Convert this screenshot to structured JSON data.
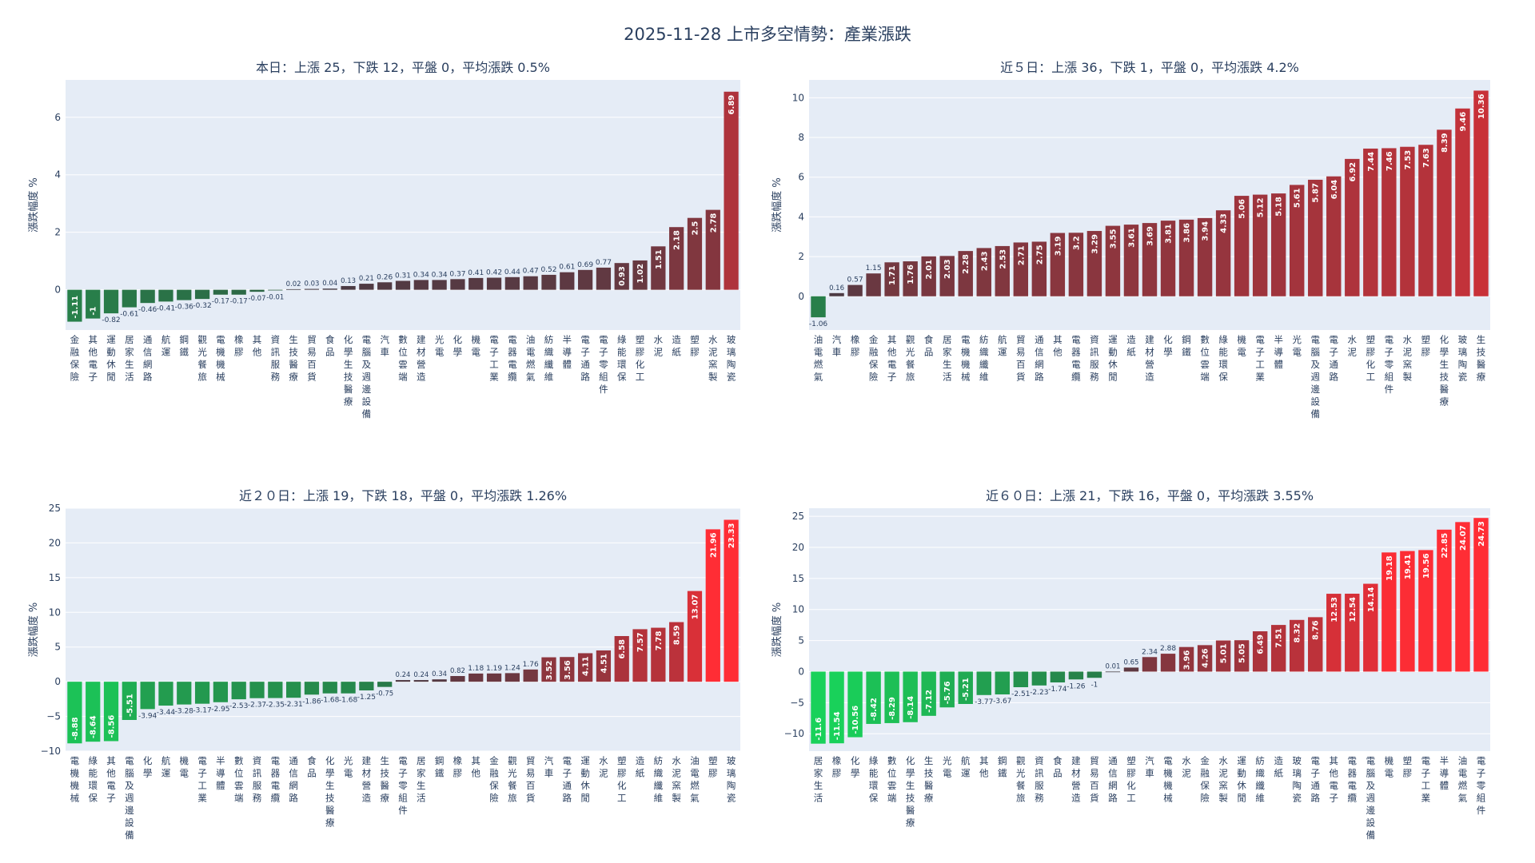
{
  "title": "2025-11-28 上市多空情勢：產業漲跌",
  "colors": {
    "plot_bg": "#e5ecf6",
    "grid": "#ffffff",
    "text": "#2a3f5f",
    "pos_high": "#ff2d35",
    "pos_low": "#3b3c45",
    "neg_low": "#2e5c43",
    "neg_high": "#19d35a"
  },
  "chart_data": [
    {
      "type": "bar",
      "title": "本日：上漲 25，下跌 12，平盤 0，平均漲跌 0.5%",
      "ylabel": "漲跌幅度 %",
      "ylim": [
        -1.4,
        7.3
      ],
      "yticks": [
        0,
        2,
        4,
        6
      ],
      "categories": [
        "金融保險",
        "其他電子",
        "運動休閒",
        "居家生活",
        "通信網路",
        "航運",
        "鋼鐵",
        "觀光餐旅",
        "電機機械",
        "橡膠",
        "其他",
        "資訊服務",
        "生技醫療",
        "貿易百貨",
        "食品",
        "化學生技醫療",
        "電腦及週邊設備",
        "汽車",
        "數位雲端",
        "建材營造",
        "光電",
        "化學",
        "機電",
        "電子工業",
        "電器電纜",
        "油電燃氣",
        "紡織纖維",
        "半導體",
        "電子通路",
        "電子零組件",
        "綠能環保",
        "塑膠化工",
        "水泥",
        "造紙",
        "塑膠",
        "水泥窯製",
        "玻璃陶瓷"
      ],
      "values": [
        -1.11,
        -1,
        -0.82,
        -0.61,
        -0.46,
        -0.41,
        -0.36,
        -0.32,
        -0.17,
        -0.17,
        -0.07,
        -0.01,
        0.02,
        0.03,
        0.04,
        0.13,
        0.21,
        0.26,
        0.31,
        0.34,
        0.34,
        0.37,
        0.41,
        0.42,
        0.44,
        0.47,
        0.52,
        0.61,
        0.69,
        0.77,
        0.93,
        1.02,
        1.51,
        2.18,
        2.5,
        2.78,
        6.89
      ]
    },
    {
      "type": "bar",
      "title": "近５日：上漲 36，下跌 1，平盤 0，平均漲跌 4.2%",
      "ylabel": "漲跌幅度 %",
      "ylim": [
        -1.7,
        10.9
      ],
      "yticks": [
        0,
        2,
        4,
        6,
        8,
        10
      ],
      "categories": [
        "油電燃氣",
        "汽車",
        "橡膠",
        "金融保險",
        "其他電子",
        "觀光餐旅",
        "食品",
        "居家生活",
        "電機機械",
        "紡織纖維",
        "航運",
        "貿易百貨",
        "通信網路",
        "其他",
        "電器電纜",
        "資訊服務",
        "運動休閒",
        "造紙",
        "建材營造",
        "化學",
        "鋼鐵",
        "數位雲端",
        "綠能環保",
        "機電",
        "電子工業",
        "半導體",
        "光電",
        "電腦及週邊設備",
        "電子通路",
        "水泥",
        "塑膠化工",
        "電子零組件",
        "水泥窯製",
        "塑膠",
        "化學生技醫療",
        "玻璃陶瓷",
        "生技醫療"
      ],
      "values": [
        -1.06,
        0.16,
        0.57,
        1.15,
        1.71,
        1.76,
        2.01,
        2.03,
        2.28,
        2.43,
        2.53,
        2.71,
        2.75,
        3.19,
        3.2,
        3.29,
        3.55,
        3.61,
        3.69,
        3.81,
        3.86,
        3.94,
        4.33,
        5.06,
        5.12,
        5.18,
        5.61,
        5.87,
        6.04,
        6.92,
        7.44,
        7.46,
        7.53,
        7.63,
        8.39,
        9.46,
        10.36
      ]
    },
    {
      "type": "bar",
      "title": "近２０日：上漲 19，下跌 18，平盤 0，平均漲跌 1.26%",
      "ylabel": "漲跌幅度 %",
      "ylim": [
        -10,
        25
      ],
      "yticks": [
        -10,
        -5,
        0,
        5,
        10,
        15,
        20,
        25
      ],
      "categories": [
        "電機機械",
        "綠能環保",
        "其他電子",
        "電腦及週邊設備",
        "化學",
        "航運",
        "機電",
        "電子工業",
        "半導體",
        "數位雲端",
        "資訊服務",
        "電器電纜",
        "通信網路",
        "食品",
        "化學生技醫療",
        "光電",
        "建材營造",
        "生技醫療",
        "電子零組件",
        "居家生活",
        "鋼鐵",
        "橡膠",
        "其他",
        "金融保險",
        "觀光餐旅",
        "貿易百貨",
        "汽車",
        "電子通路",
        "運動休閒",
        "水泥",
        "塑膠化工",
        "造紙",
        "紡織纖維",
        "水泥窯製",
        "油電燃氣",
        "塑膠",
        "玻璃陶瓷"
      ],
      "values": [
        -8.88,
        -8.64,
        -8.56,
        -5.51,
        -3.94,
        -3.44,
        -3.28,
        -3.17,
        -2.95,
        -2.53,
        -2.37,
        -2.35,
        -2.31,
        -1.86,
        -1.68,
        -1.68,
        -1.25,
        -0.75,
        0.24,
        0.24,
        0.34,
        0.82,
        1.18,
        1.19,
        1.24,
        1.76,
        3.52,
        3.56,
        4.11,
        4.51,
        6.58,
        7.57,
        7.78,
        8.59,
        13.07,
        21.96,
        23.33
      ]
    },
    {
      "type": "bar",
      "title": "近６０日：上漲 21，下跌 16，平盤 0，平均漲跌 3.55%",
      "ylabel": "漲跌幅度 %",
      "ylim": [
        -12.8,
        26.3
      ],
      "yticks": [
        -10,
        -5,
        0,
        5,
        10,
        15,
        20,
        25
      ],
      "categories": [
        "居家生活",
        "橡膠",
        "化學",
        "綠能環保",
        "數位雲端",
        "化學生技醫療",
        "生技醫療",
        "光電",
        "航運",
        "其他",
        "鋼鐵",
        "觀光餐旅",
        "資訊服務",
        "食品",
        "建材營造",
        "貿易百貨",
        "通信網路",
        "塑膠化工",
        "汽車",
        "電機機械",
        "水泥",
        "金融保險",
        "水泥窯製",
        "運動休閒",
        "紡織纖維",
        "造紙",
        "玻璃陶瓷",
        "電子通路",
        "其他電子",
        "電器電纜",
        "電腦及週邊設備",
        "機電",
        "塑膠",
        "電子工業",
        "半導體",
        "油電燃氣",
        "電子零組件"
      ],
      "values": [
        -11.6,
        -11.54,
        -10.56,
        -8.42,
        -8.29,
        -8.14,
        -7.12,
        -5.76,
        -5.21,
        -3.77,
        -3.67,
        -2.51,
        -2.23,
        -1.74,
        -1.26,
        -1,
        0.01,
        0.65,
        2.34,
        2.88,
        3.96,
        4.26,
        5.01,
        5.05,
        6.49,
        7.51,
        8.32,
        8.76,
        12.53,
        12.54,
        14.14,
        19.18,
        19.41,
        19.56,
        22.85,
        24.07,
        24.73
      ]
    }
  ]
}
